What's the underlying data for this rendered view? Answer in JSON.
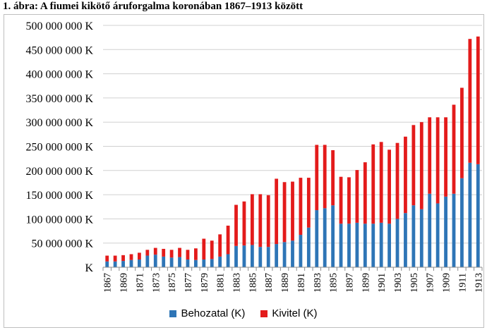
{
  "title": "1. ábra: A fiumei kikötő áruforgalma koronában 1867–1913 között",
  "colors": {
    "import": "#2e75b6",
    "export": "#e31b1b",
    "grid": "#d0d0d0",
    "axis": "#8c8c8c"
  },
  "chart_data": {
    "type": "bar",
    "stacked": true,
    "title": "1. ábra: A fiumei kikötő áruforgalma koronában 1867–1913 között",
    "xlabel": "",
    "ylabel": "",
    "ylim": [
      0,
      500000000
    ],
    "grid": true,
    "legend_position": "bottom",
    "y_ticks": [
      0,
      50000000,
      100000000,
      150000000,
      200000000,
      250000000,
      300000000,
      350000000,
      400000000,
      450000000,
      500000000
    ],
    "y_tick_labels": [
      "K",
      "50 000 000 K",
      "100 000 000 K",
      "150 000 000 K",
      "200 000 000 K",
      "250 000 000 K",
      "300 000 000 K",
      "350 000 000 K",
      "400 000 000 K",
      "450 000 000 K",
      "500 000 000 K"
    ],
    "categories": [
      "1867",
      "1868",
      "1869",
      "1870",
      "1871",
      "1872",
      "1873",
      "1874",
      "1875",
      "1876",
      "1877",
      "1878",
      "1879",
      "1880",
      "1881",
      "1882",
      "1883",
      "1884",
      "1885",
      "1886",
      "1887",
      "1888",
      "1889",
      "1890",
      "1891",
      "1892",
      "1893",
      "1894",
      "1895",
      "1896",
      "1897",
      "1898",
      "1899",
      "1900",
      "1901",
      "1902",
      "1903",
      "1904",
      "1905",
      "1906",
      "1907",
      "1908",
      "1909",
      "1910",
      "1911",
      "1912",
      "1913"
    ],
    "x_tick_labels": [
      "1867",
      "1869",
      "1871",
      "1873",
      "1875",
      "1877",
      "1879",
      "1881",
      "1883",
      "1885",
      "1887",
      "1889",
      "1891",
      "1893",
      "1895",
      "1897",
      "1899",
      "1901",
      "1903",
      "1905",
      "1907",
      "1909",
      "1911",
      "1913"
    ],
    "series": [
      {
        "name": "Behozatal (K)",
        "color": "#2e75b6",
        "values": [
          12000000,
          12000000,
          13000000,
          15000000,
          16000000,
          24000000,
          26000000,
          22000000,
          20000000,
          21000000,
          16000000,
          15000000,
          16000000,
          17000000,
          22000000,
          27000000,
          44000000,
          45000000,
          46000000,
          42000000,
          42000000,
          48000000,
          52000000,
          55000000,
          67000000,
          82000000,
          118000000,
          122000000,
          128000000,
          90000000,
          90000000,
          92000000,
          90000000,
          90000000,
          92000000,
          90000000,
          100000000,
          112000000,
          128000000,
          120000000,
          152000000,
          132000000,
          146000000,
          152000000,
          184000000,
          216000000,
          213000000
        ]
      },
      {
        "name": "Kivitel (K)",
        "color": "#e31b1b",
        "values": [
          12000000,
          12000000,
          12000000,
          12000000,
          14000000,
          12000000,
          14000000,
          16000000,
          16000000,
          19000000,
          20000000,
          24000000,
          43000000,
          38000000,
          46000000,
          59000000,
          85000000,
          91000000,
          105000000,
          109000000,
          107000000,
          135000000,
          124000000,
          122000000,
          118000000,
          103000000,
          135000000,
          131000000,
          114000000,
          97000000,
          96000000,
          109000000,
          127000000,
          164000000,
          167000000,
          153000000,
          157000000,
          158000000,
          166000000,
          180000000,
          158000000,
          178000000,
          164000000,
          184000000,
          187000000,
          256000000,
          264000000
        ]
      }
    ]
  }
}
